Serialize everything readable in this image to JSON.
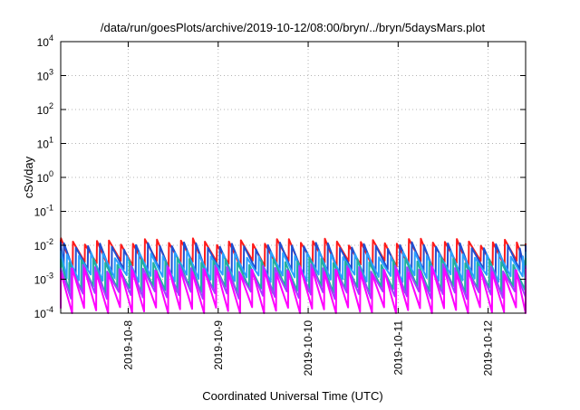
{
  "chart_data": {
    "type": "line",
    "title": "/data/run/goesPlots/archive/2019-10-12/08:00/bryn/../bryn/5daysMars.plot",
    "xlabel": "Coordinated Universal Time (UTC)",
    "ylabel": "cSv/day",
    "x_scale": "time",
    "x_range": [
      "2019-10-07T06:00",
      "2019-10-12T10:00"
    ],
    "x_ticks": [
      "2019-10-8",
      "2019-10-9",
      "2019-10-10",
      "2019-10-11",
      "2019-10-12"
    ],
    "y_scale": "log",
    "y_range": [
      0.0001,
      10000
    ],
    "y_ticks": [
      {
        "value": 0.0001,
        "base": "10",
        "exp": "-4"
      },
      {
        "value": 0.001,
        "base": "10",
        "exp": "-3"
      },
      {
        "value": 0.01,
        "base": "10",
        "exp": "-2"
      },
      {
        "value": 0.1,
        "base": "10",
        "exp": "-1"
      },
      {
        "value": 1,
        "base": "10",
        "exp": "0"
      },
      {
        "value": 10,
        "base": "10",
        "exp": "1"
      },
      {
        "value": 100,
        "base": "10",
        "exp": "2"
      },
      {
        "value": 1000,
        "base": "10",
        "exp": "3"
      },
      {
        "value": 10000,
        "base": "10",
        "exp": "4"
      }
    ],
    "grid": true,
    "cycle_hours": 3.2,
    "series": [
      {
        "color": "#ff1a1a",
        "peak": 0.013,
        "trough": 0.0028,
        "phase": 0.0
      },
      {
        "color": "#1f4fd1",
        "peak": 0.01,
        "trough": 0.0016,
        "phase": 0.25
      },
      {
        "color": "#2aa0ff",
        "peak": 0.0055,
        "trough": 0.0011,
        "phase": 0.5
      },
      {
        "color": "#20b0a0",
        "peak": 0.0035,
        "trough": 0.0005,
        "phase": 0.7
      },
      {
        "color": "#a040ff",
        "peak": 0.0022,
        "trough": 0.00035,
        "phase": 0.85
      },
      {
        "color": "#ff00ff",
        "peak": 0.0018,
        "trough": 0.00012,
        "phase": 0.95
      }
    ]
  }
}
